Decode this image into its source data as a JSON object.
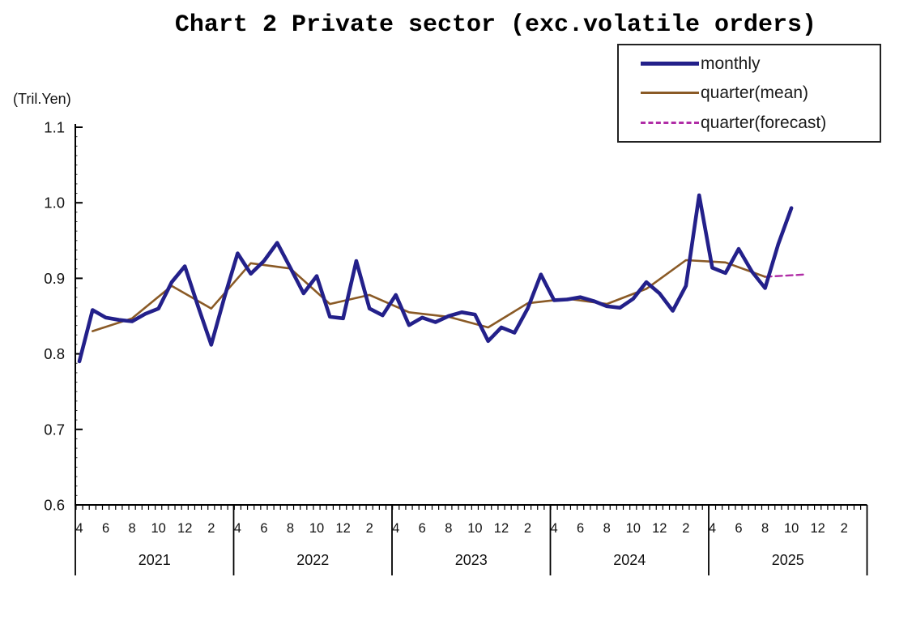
{
  "chart": {
    "title": "Chart 2 Private sector (exc.volatile orders)",
    "unit_label": "(Tril.Yen)"
  },
  "legend": {
    "items": [
      {
        "label": "monthly",
        "color": "#23208a",
        "style": "solid",
        "thickness": 5
      },
      {
        "label": "quarter(mean)",
        "color": "#8a5a26",
        "style": "solid",
        "thickness": 3
      },
      {
        "label": "quarter(forecast)",
        "color": "#b02da6",
        "style": "dashed",
        "thickness": 3
      }
    ]
  },
  "chart_data": {
    "type": "line",
    "title": "Chart 2 Private sector (exc.volatile orders)",
    "xlabel": "",
    "ylabel": "(Tril.Yen)",
    "ylim": [
      0.6,
      1.1
    ],
    "yticks": [
      0.6,
      0.7,
      0.8,
      0.9,
      1.0,
      1.1
    ],
    "grid": false,
    "legend_position": "top-right",
    "x_years": [
      {
        "year": "2021",
        "month_labels": [
          "4",
          "6",
          "8",
          "10",
          "12",
          "2"
        ]
      },
      {
        "year": "2022",
        "month_labels": [
          "4",
          "6",
          "8",
          "10",
          "12",
          "2"
        ]
      },
      {
        "year": "2023",
        "month_labels": [
          "4",
          "6",
          "8",
          "10",
          "12",
          "2"
        ]
      },
      {
        "year": "2024",
        "month_labels": [
          "4",
          "6",
          "8",
          "10",
          "12",
          "2"
        ]
      },
      {
        "year": "2025",
        "month_labels": [
          "4",
          "6",
          "8",
          "10",
          "12",
          "2"
        ]
      }
    ],
    "x_note": "month index 0 = April 2021; fiscal-year sections Apr-Mar",
    "series": [
      {
        "name": "quarter(forecast)",
        "color": "#b02da6",
        "width": 2.4,
        "dash": "8 5",
        "month_indices": [
          52,
          55
        ],
        "values": [
          0.902,
          0.905
        ]
      },
      {
        "name": "quarter(mean)",
        "color": "#8a5a26",
        "width": 2.6,
        "start_month_index": 1,
        "month_step": 3,
        "values": [
          0.83,
          0.847,
          0.89,
          0.86,
          0.92,
          0.913,
          0.866,
          0.878,
          0.855,
          0.849,
          0.835,
          0.867,
          0.873,
          0.866,
          0.886,
          0.924,
          0.921,
          0.902
        ]
      },
      {
        "name": "monthly",
        "color": "#23208a",
        "width": 4.6,
        "start_month_index": 0,
        "month_step": 1,
        "values": [
          0.79,
          0.858,
          0.848,
          0.845,
          0.843,
          0.853,
          0.86,
          0.895,
          0.916,
          0.863,
          0.812,
          0.875,
          0.933,
          0.906,
          0.923,
          0.947,
          0.914,
          0.88,
          0.903,
          0.849,
          0.847,
          0.923,
          0.86,
          0.851,
          0.878,
          0.838,
          0.848,
          0.842,
          0.85,
          0.855,
          0.852,
          0.817,
          0.835,
          0.828,
          0.86,
          0.905,
          0.871,
          0.872,
          0.875,
          0.87,
          0.863,
          0.861,
          0.873,
          0.895,
          0.88,
          0.857,
          0.89,
          1.01,
          0.914,
          0.907,
          0.939,
          0.909,
          0.887,
          0.945,
          0.993
        ]
      }
    ]
  }
}
